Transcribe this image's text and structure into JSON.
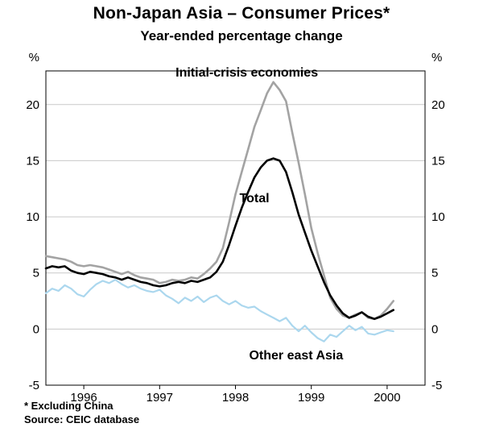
{
  "title": "Non-Japan Asia – Consumer Prices*",
  "subtitle": "Year-ended percentage change",
  "footnotes": [
    "* Excluding China",
    "Source: CEIC database"
  ],
  "unit_label": "%",
  "colors": {
    "background": "#ffffff",
    "gridline": "#c9c9c9",
    "frame": "#000000",
    "initial_crisis": "#a3a3a3",
    "total": "#000000",
    "other_east_asia": "#abd7ee"
  },
  "chart_data": {
    "type": "line",
    "title": "Non-Japan Asia – Consumer Prices*",
    "subtitle": "Year-ended percentage change",
    "xlabel": "",
    "ylabel": "%",
    "grid": "horizontal",
    "legend_position": "inline-annotations",
    "x_axis": {
      "min": 1995.5,
      "max": 2000.5,
      "ticks": [
        1996,
        1997,
        1998,
        1999,
        2000
      ],
      "frequency": "monthly",
      "start": 1995.5,
      "step": 0.0833333
    },
    "y_axis": {
      "min": -5,
      "max": 23,
      "ticks": [
        -5,
        0,
        5,
        10,
        15,
        20
      ],
      "unit": "%"
    },
    "series": [
      {
        "name": "Initial-crisis economies",
        "color": "#a3a3a3",
        "width": 2.6,
        "values": [
          6.5,
          6.4,
          6.3,
          6.2,
          6.0,
          5.7,
          5.6,
          5.7,
          5.6,
          5.5,
          5.3,
          5.1,
          4.9,
          5.1,
          4.8,
          4.6,
          4.5,
          4.4,
          4.1,
          4.2,
          4.4,
          4.3,
          4.4,
          4.6,
          4.5,
          4.9,
          5.4,
          6.0,
          7.2,
          9.5,
          12.0,
          14.0,
          16.0,
          18.0,
          19.5,
          21.0,
          22.0,
          21.3,
          20.3,
          17.5,
          14.8,
          12.0,
          9.0,
          6.8,
          4.8,
          2.8,
          1.8,
          1.2,
          1.0,
          1.3,
          1.5,
          1.0,
          0.9,
          1.2,
          1.8,
          2.5
        ]
      },
      {
        "name": "Other east Asia",
        "color": "#abd7ee",
        "width": 2.2,
        "values": [
          3.2,
          3.6,
          3.4,
          3.9,
          3.6,
          3.1,
          2.9,
          3.5,
          4.0,
          4.3,
          4.1,
          4.4,
          4.0,
          3.7,
          3.9,
          3.6,
          3.4,
          3.3,
          3.5,
          3.0,
          2.7,
          2.3,
          2.8,
          2.5,
          2.9,
          2.4,
          2.8,
          3.0,
          2.5,
          2.2,
          2.5,
          2.1,
          1.9,
          2.0,
          1.6,
          1.3,
          1.0,
          0.7,
          1.0,
          0.3,
          -0.2,
          0.3,
          -0.3,
          -0.8,
          -1.1,
          -0.5,
          -0.7,
          -0.2,
          0.3,
          -0.1,
          0.2,
          -0.4,
          -0.5,
          -0.3,
          -0.1,
          -0.2
        ]
      },
      {
        "name": "Total",
        "color": "#000000",
        "width": 2.6,
        "values": [
          5.4,
          5.6,
          5.5,
          5.6,
          5.2,
          5.0,
          4.9,
          5.1,
          5.0,
          4.9,
          4.7,
          4.6,
          4.4,
          4.6,
          4.4,
          4.2,
          4.1,
          3.9,
          3.8,
          3.9,
          4.1,
          4.2,
          4.1,
          4.3,
          4.2,
          4.4,
          4.6,
          5.1,
          6.0,
          7.5,
          9.2,
          10.8,
          12.2,
          13.5,
          14.4,
          15.0,
          15.2,
          15.0,
          14.0,
          12.2,
          10.2,
          8.6,
          7.0,
          5.6,
          4.2,
          3.0,
          2.1,
          1.4,
          1.0,
          1.2,
          1.5,
          1.1,
          0.9,
          1.1,
          1.4,
          1.7
        ]
      }
    ],
    "annotations": [
      {
        "text": "Initial-crisis economies",
        "x": 1998.15,
        "y": 22.5
      },
      {
        "text": "Total",
        "x": 1998.25,
        "y": 11.3
      },
      {
        "text": "Other east Asia",
        "x": 1998.8,
        "y": -2.7
      }
    ]
  }
}
